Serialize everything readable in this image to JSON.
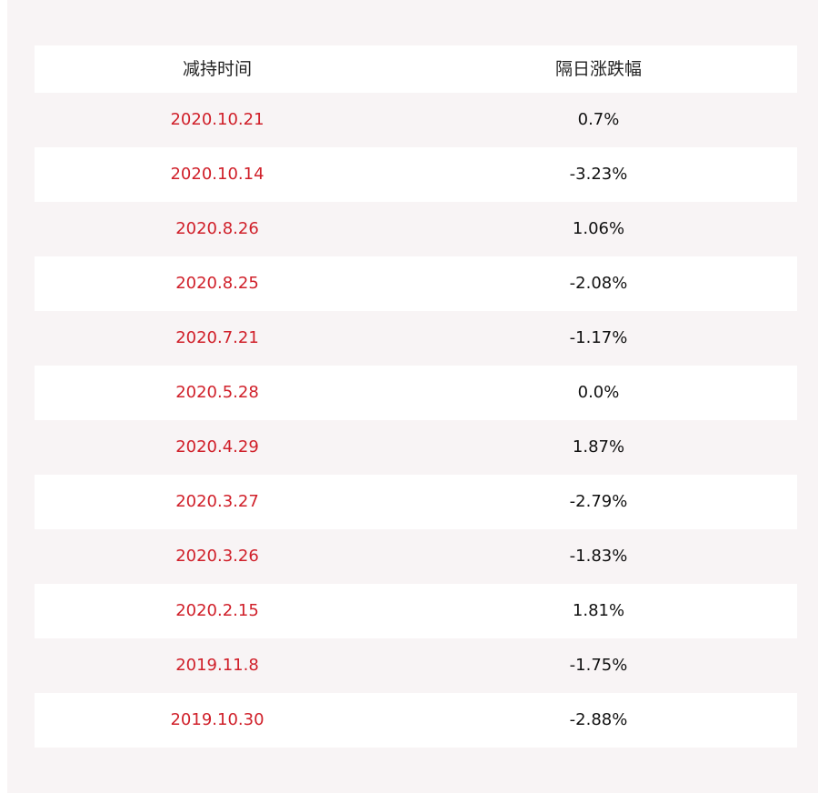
{
  "table": {
    "headers": {
      "date": "减持时间",
      "change": "隔日涨跌幅"
    },
    "rows": [
      {
        "date": "2020.10.21",
        "change": "0.7%"
      },
      {
        "date": "2020.10.14",
        "change": "-3.23%"
      },
      {
        "date": "2020.8.26",
        "change": "1.06%"
      },
      {
        "date": "2020.8.25",
        "change": "-2.08%"
      },
      {
        "date": "2020.7.21",
        "change": "-1.17%"
      },
      {
        "date": "2020.5.28",
        "change": "0.0%"
      },
      {
        "date": "2020.4.29",
        "change": "1.87%"
      },
      {
        "date": "2020.3.27",
        "change": "-2.79%"
      },
      {
        "date": "2020.3.26",
        "change": "-1.83%"
      },
      {
        "date": "2020.2.15",
        "change": "1.81%"
      },
      {
        "date": "2019.11.8",
        "change": "-1.75%"
      },
      {
        "date": "2019.10.30",
        "change": "-2.88%"
      }
    ],
    "colors": {
      "date_text": "#d0202a",
      "change_text": "#111111",
      "panel_bg": "#f8f4f5",
      "row_alt_bg": "#ffffff"
    }
  }
}
